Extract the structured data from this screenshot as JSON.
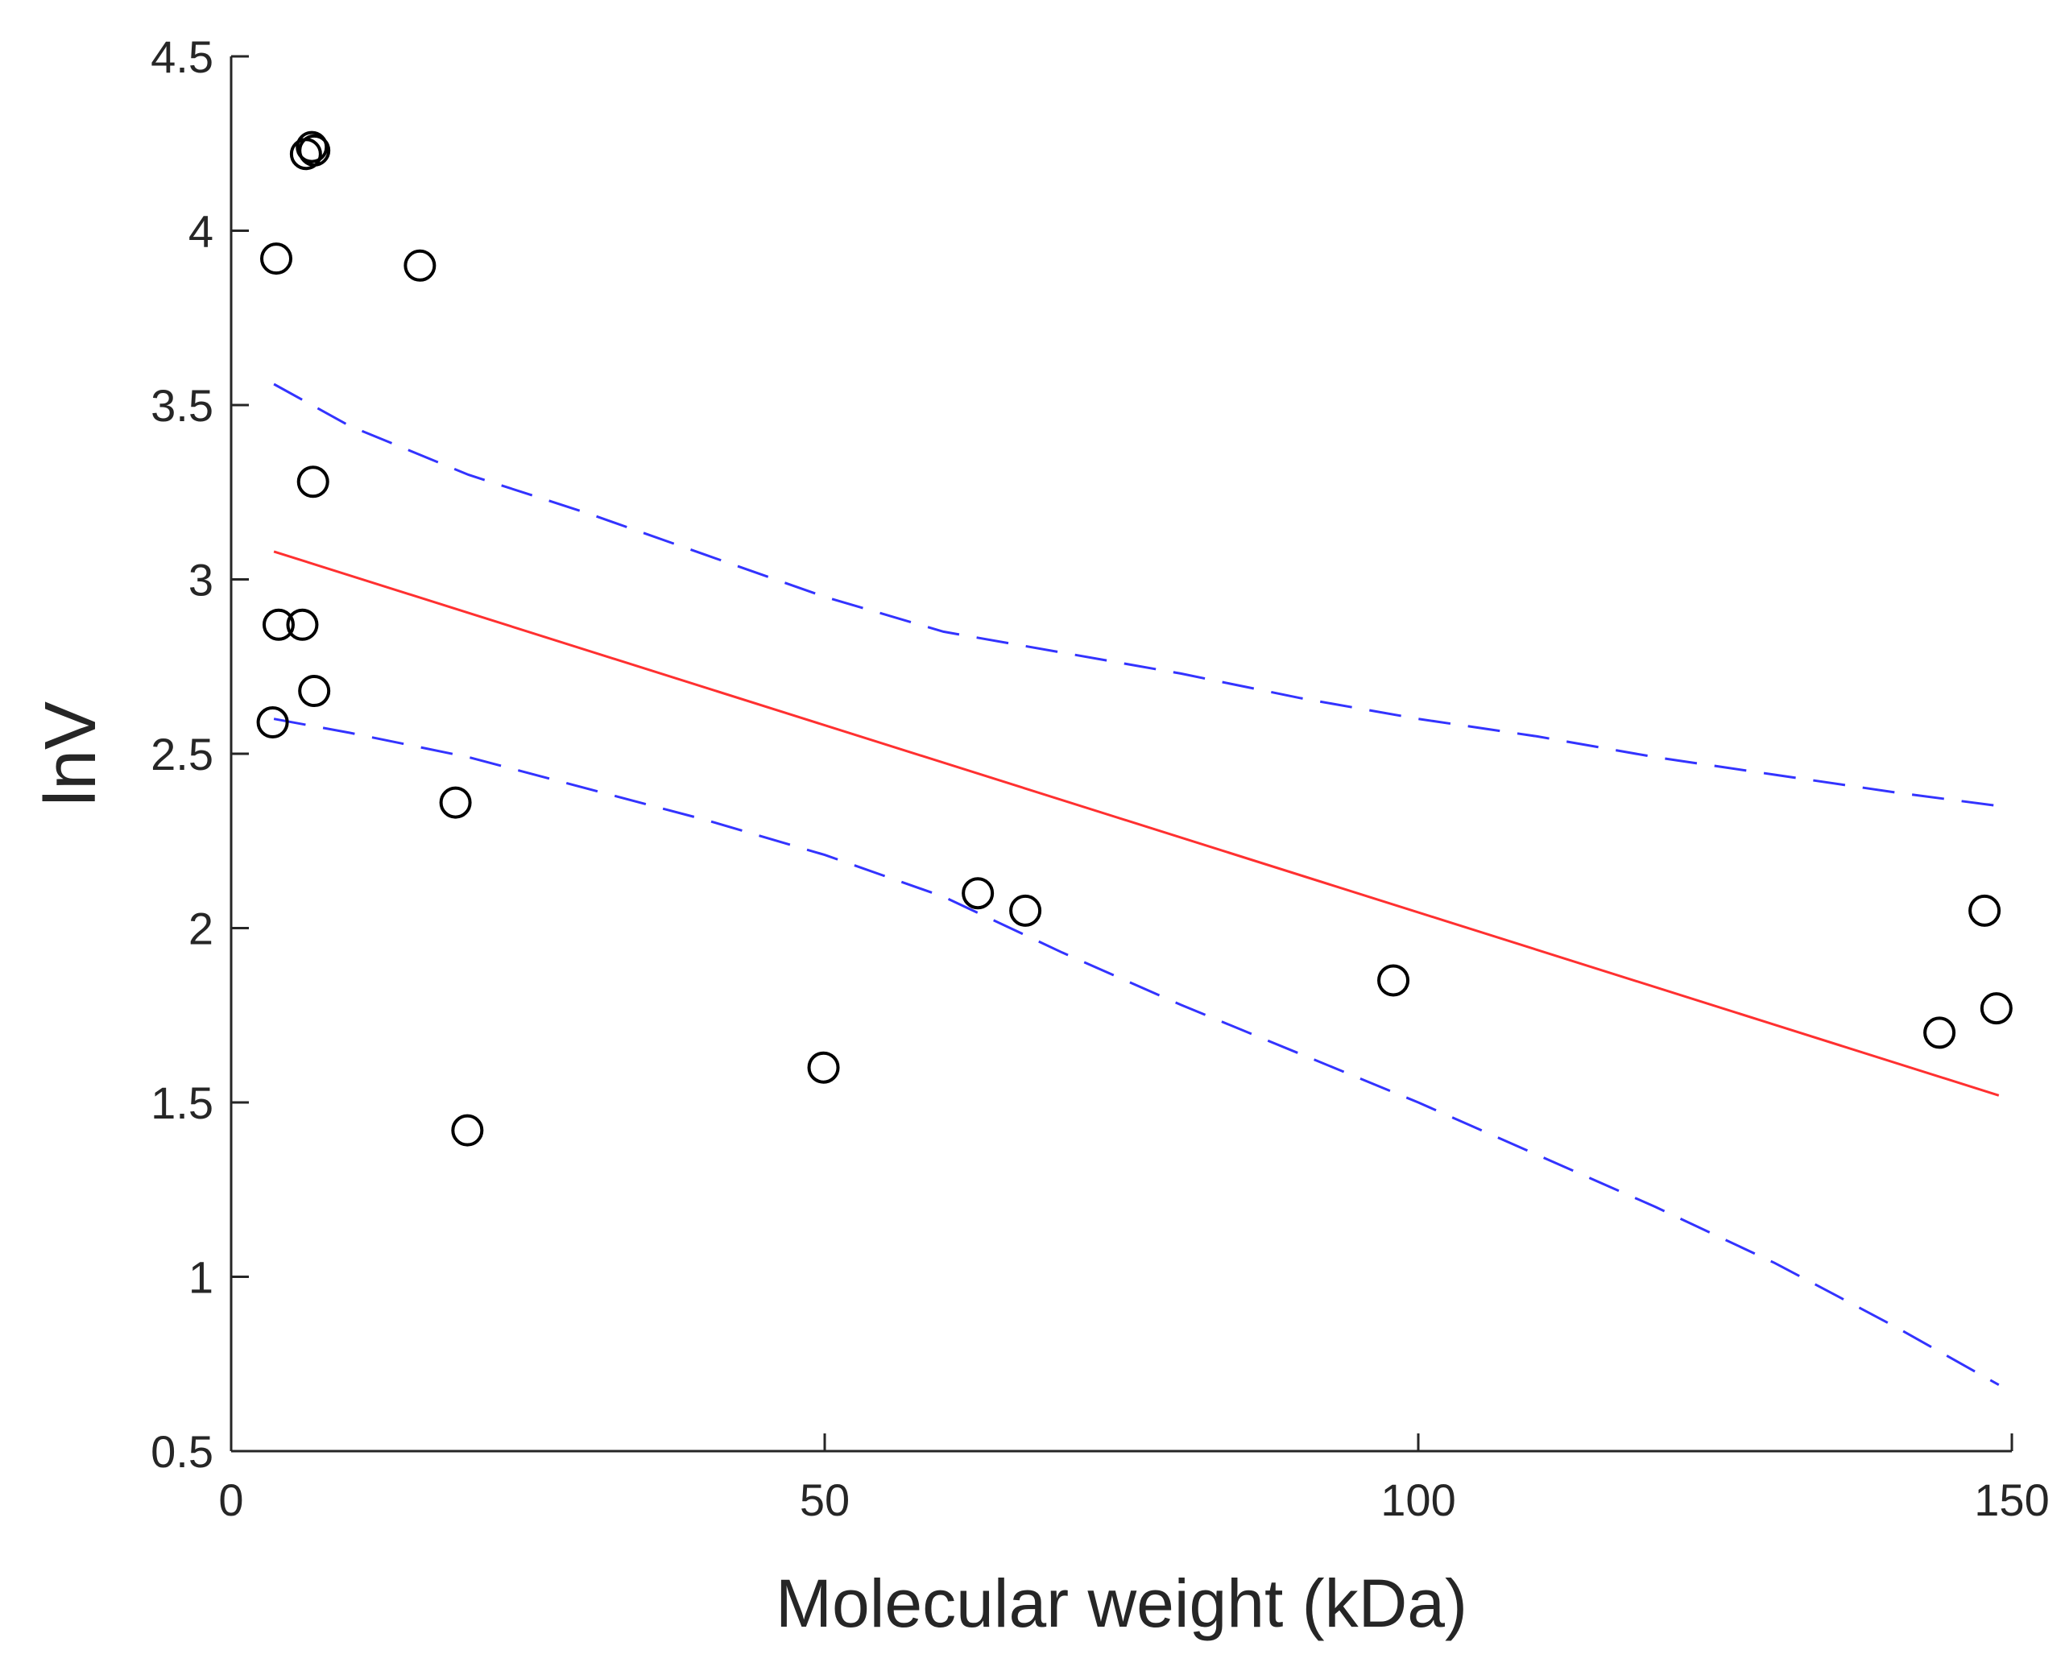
{
  "chart_data": {
    "type": "scatter",
    "title": "",
    "xlabel": "Molecular weight (kDa)",
    "ylabel": "lnV",
    "xlim": [
      0,
      150
    ],
    "ylim": [
      0.5,
      4.5
    ],
    "xticks": [
      0,
      50,
      100,
      150
    ],
    "yticks": [
      0.5,
      1,
      1.5,
      2,
      2.5,
      3,
      3.5,
      4,
      4.5
    ],
    "xtick_labels": [
      "0",
      "50",
      "100",
      "150"
    ],
    "ytick_labels": [
      "0.5",
      "1",
      "1.5",
      "2",
      "2.5",
      "3",
      "3.5",
      "4",
      "4.5"
    ],
    "grid": false,
    "series": [
      {
        "name": "data",
        "kind": "scatter",
        "marker": "open-circle",
        "color": "#000000",
        "x": [
          3.5,
          3.8,
          4.0,
          6.0,
          6.3,
          6.8,
          6.9,
          7.0,
          7.0,
          15.9,
          18.9,
          19.9,
          49.9,
          62.9,
          66.9,
          97.9,
          143.9,
          147.7,
          148.7
        ],
        "y": [
          2.59,
          3.92,
          2.87,
          2.87,
          4.22,
          4.24,
          3.28,
          4.23,
          2.68,
          3.9,
          2.36,
          1.42,
          1.6,
          2.1,
          2.05,
          1.85,
          1.7,
          2.05,
          1.77
        ]
      },
      {
        "name": "fit",
        "kind": "line",
        "style": "solid",
        "color": "#ff3030",
        "x": [
          3.6,
          148.9
        ],
        "y": [
          3.08,
          1.52
        ]
      },
      {
        "name": "upper-bound",
        "kind": "line",
        "style": "dashed",
        "color": "#3333ff",
        "x": [
          3.6,
          10,
          20,
          30,
          40,
          50,
          60,
          70,
          80,
          90,
          100,
          110,
          120,
          130,
          140,
          148.9
        ],
        "y": [
          3.56,
          3.44,
          3.3,
          3.19,
          3.07,
          2.95,
          2.85,
          2.79,
          2.73,
          2.66,
          2.6,
          2.55,
          2.49,
          2.44,
          2.39,
          2.35
        ]
      },
      {
        "name": "lower-bound",
        "kind": "line",
        "style": "dashed",
        "color": "#3333ff",
        "x": [
          3.6,
          10,
          20,
          30,
          40,
          50,
          60,
          70,
          80,
          90,
          100,
          110,
          120,
          130,
          140,
          148.9
        ],
        "y": [
          2.6,
          2.56,
          2.49,
          2.4,
          2.31,
          2.21,
          2.09,
          1.93,
          1.78,
          1.64,
          1.5,
          1.35,
          1.2,
          1.04,
          0.86,
          0.69
        ]
      }
    ]
  }
}
